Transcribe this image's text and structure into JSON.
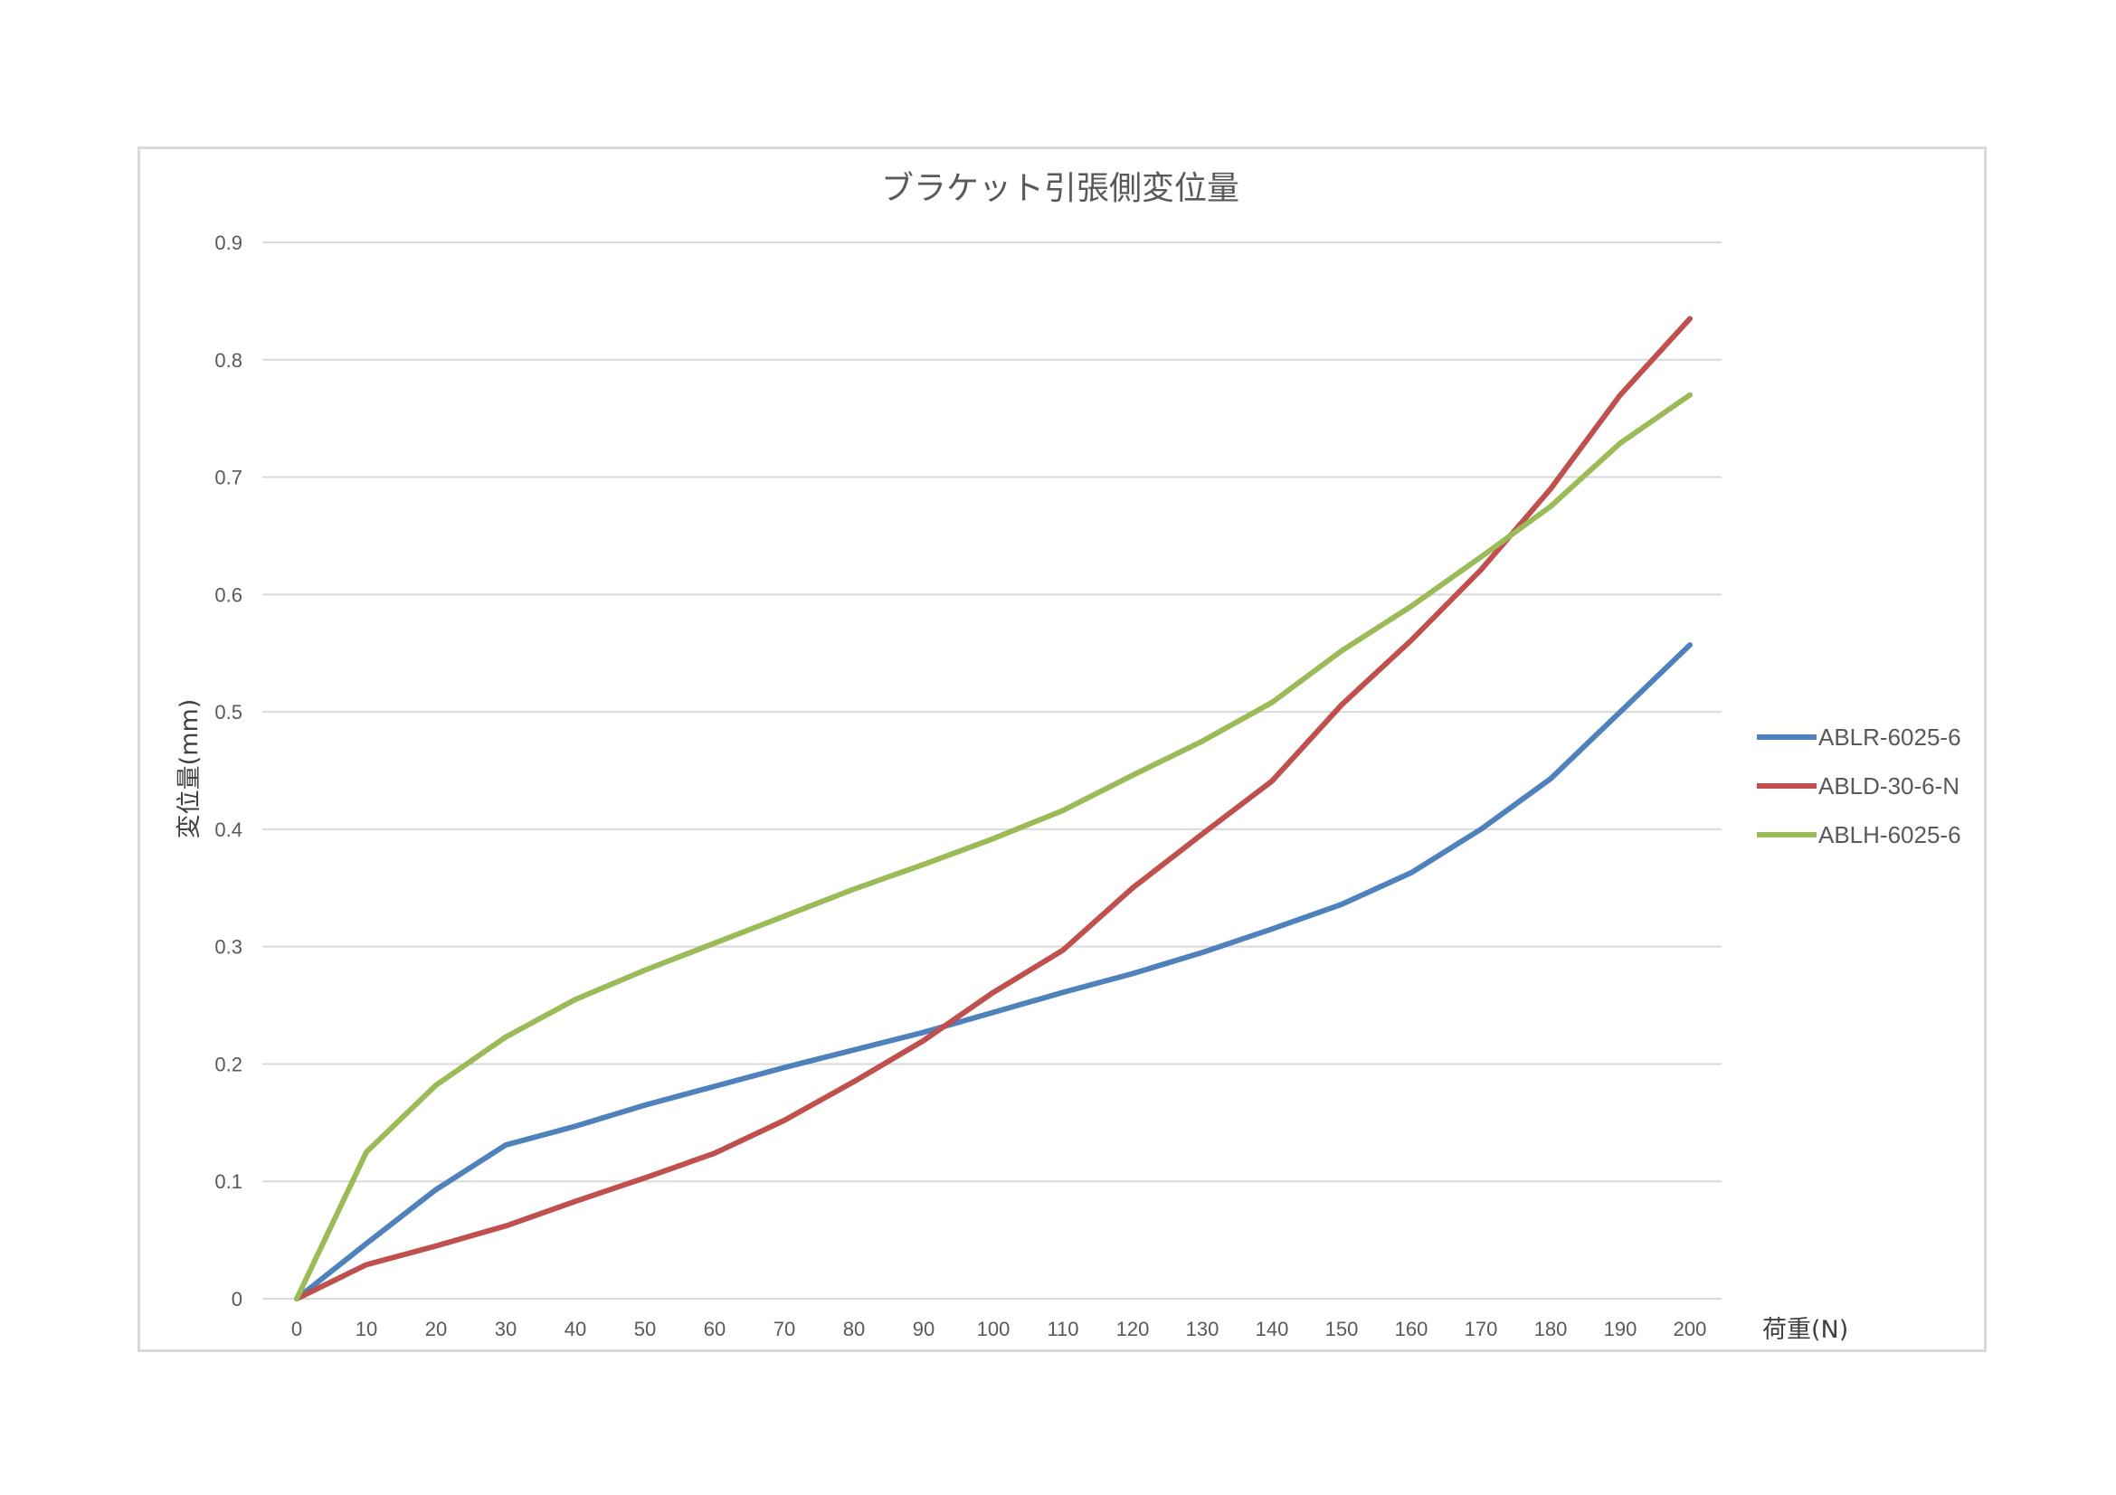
{
  "chart_data": {
    "type": "line",
    "title": "ブラケット引張側変位量",
    "xlabel": "荷重(N)",
    "ylabel": "変位量(mm)",
    "x": [
      0,
      10,
      20,
      30,
      40,
      50,
      60,
      70,
      80,
      90,
      100,
      110,
      120,
      130,
      140,
      150,
      160,
      170,
      180,
      190,
      200
    ],
    "ylim": [
      0,
      0.9
    ],
    "yticks": [
      "0",
      "0.1",
      "0.2",
      "0.3",
      "0.4",
      "0.5",
      "0.6",
      "0.7",
      "0.8",
      "0.9"
    ],
    "grid": true,
    "legend_position": "right",
    "series": [
      {
        "name": "ABLR-6025-6",
        "color": "#4f81bd",
        "values": [
          0,
          0.047,
          0.093,
          0.131,
          0.147,
          0.165,
          0.181,
          0.197,
          0.212,
          0.227,
          0.244,
          0.261,
          0.277,
          0.295,
          0.315,
          0.336,
          0.363,
          0.4,
          0.443,
          0.5,
          0.557
        ]
      },
      {
        "name": "ABLD-30-6-N",
        "color": "#c0504d",
        "values": [
          0,
          0.029,
          0.045,
          0.062,
          0.083,
          0.103,
          0.124,
          0.152,
          0.185,
          0.22,
          0.261,
          0.297,
          0.35,
          0.396,
          0.441,
          0.506,
          0.561,
          0.621,
          0.69,
          0.77,
          0.835
        ]
      },
      {
        "name": "ABLH-6025-6",
        "color": "#9bbb59",
        "values": [
          0,
          0.125,
          0.182,
          0.223,
          0.255,
          0.28,
          0.303,
          0.326,
          0.349,
          0.37,
          0.392,
          0.416,
          0.446,
          0.475,
          0.508,
          0.552,
          0.59,
          0.632,
          0.675,
          0.729,
          0.77
        ]
      }
    ]
  }
}
